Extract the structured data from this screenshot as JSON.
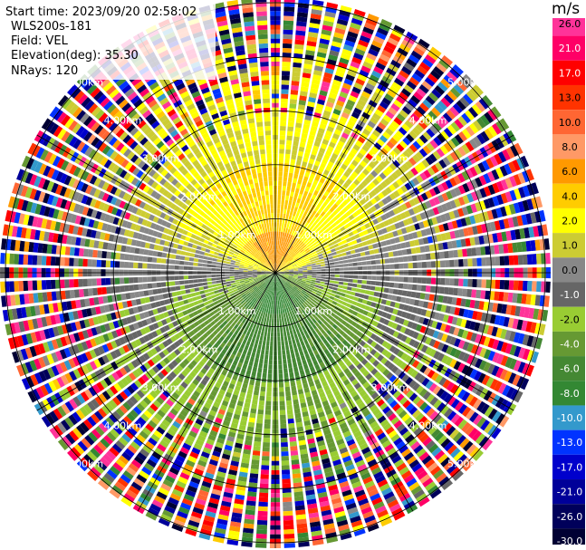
{
  "header": {
    "start_time": "Start time: 2023/09/20 02:58:02",
    "station": "WLS200s-181",
    "field": "Field: VEL",
    "elevation": "Elevation(deg): 35.30",
    "nrays": "NRays: 120"
  },
  "colorbar": {
    "unit": "m/s",
    "ticks": [
      "26.0",
      "21.0",
      "17.0",
      "13.0",
      "10.0",
      "8.0",
      "6.0",
      "4.0",
      "2.0",
      "1.0",
      "0.0",
      "-1.0",
      "-2.0",
      "-4.0",
      "-6.0",
      "-8.0",
      "-10.0",
      "-13.0",
      "-17.0",
      "-21.0",
      "-26.0",
      "-30.0"
    ],
    "colors": [
      "#ff3399",
      "#ff0066",
      "#ff0000",
      "#ff3300",
      "#ff6633",
      "#ff9966",
      "#ff9900",
      "#ffcc00",
      "#ffff00",
      "#cccc33",
      "#888888",
      "#666666",
      "#99cc33",
      "#669933",
      "#448833",
      "#338833",
      "#3399cc",
      "#0033ff",
      "#0000cc",
      "#000099",
      "#00005a",
      "#000033"
    ]
  },
  "chart_data": {
    "type": "heatmap",
    "subtype": "polar PPI (plan position indicator)",
    "field": "VEL",
    "units": "m/s",
    "n_rays": 120,
    "elevation_deg": 35.3,
    "range_ring_labels": [
      "1.00km",
      "2.00km",
      "3.00km",
      "4.00km",
      "5.00km"
    ],
    "range_rings_km": [
      1,
      2,
      3,
      4,
      5
    ],
    "max_range_km": 5.1,
    "color_limits": [
      -30.0,
      26.0
    ],
    "velocity_pattern": {
      "north_sector_near_km": 0.8,
      "north_near_value": 7.0,
      "north_mid_value": 4.5,
      "north_far_value": 2.0,
      "south_sector_near_value": -7.0,
      "south_mid_value": -5.0,
      "south_far_value": -2.0,
      "noise_onset_km": 2.7
    }
  }
}
